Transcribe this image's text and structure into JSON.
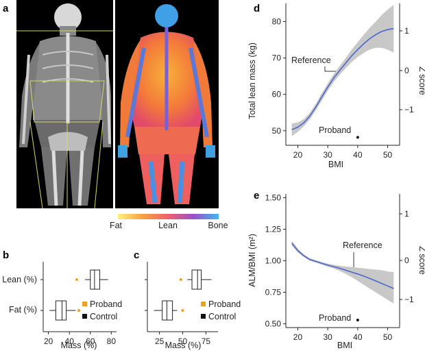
{
  "panels": {
    "a": {
      "label": "a",
      "colorbar": {
        "fat": "Fat",
        "lean": "Lean",
        "bone": "Bone"
      }
    },
    "b": {
      "label": "b",
      "ylabels": [
        "Lean (%)",
        "Fat (%)"
      ],
      "xlabel": "Mass (%)",
      "xticks": [
        "20",
        "40",
        "60",
        "80"
      ],
      "legend": {
        "proband": "Proband",
        "control": "Control"
      }
    },
    "c": {
      "label": "c",
      "xlabel": "Mass (%)",
      "xticks": [
        "25",
        "50",
        "75"
      ],
      "legend": {
        "proband": "Proband",
        "control": "Control"
      }
    },
    "d": {
      "label": "d",
      "ylabel": "Total lean mass (kg)",
      "y2label": "Z score",
      "xlabel": "BMI",
      "xticks": [
        "20",
        "30",
        "40",
        "50"
      ],
      "yticks": [
        "50",
        "60",
        "70",
        "80"
      ],
      "y2ticks": [
        "1",
        "0",
        "−1"
      ],
      "reference": "Reference",
      "proband": "Proband"
    },
    "e": {
      "label": "e",
      "ylabel": "ALM/BMI (m²)",
      "y2label": "Z score",
      "xlabel": "BMI",
      "xticks": [
        "20",
        "30",
        "40",
        "50"
      ],
      "yticks": [
        "0.50",
        "0.75",
        "1.00",
        "1.25",
        "1.50"
      ],
      "y2ticks": [
        "1",
        "0",
        "−1"
      ],
      "reference": "Reference",
      "proband": "Proband"
    }
  },
  "colors": {
    "proband": "#f0a020",
    "curve": "#4a66c8",
    "band": "#c8c8c8"
  },
  "chart_data": [
    {
      "type": "box",
      "panel": "b",
      "xlim": [
        15,
        85
      ],
      "proband": {
        "lean": 47,
        "fat": 49
      },
      "control": {
        "lean": {
          "whisker_low": 55,
          "q1": 60,
          "median": 64,
          "q3": 69,
          "whisker_high": 77
        },
        "fat": {
          "whisker_low": 21,
          "q1": 27,
          "median": 33,
          "q3": 37,
          "whisker_high": 46
        }
      }
    },
    {
      "type": "box",
      "panel": "c",
      "xlim": [
        12,
        88
      ],
      "proband": {
        "lean": 48,
        "fat": 50
      },
      "control": {
        "lean": {
          "whisker_low": 55,
          "q1": 60,
          "median": 66,
          "q3": 70,
          "whisker_high": 81
        },
        "fat": {
          "whisker_low": 19,
          "q1": 28,
          "median": 33,
          "q3": 39,
          "whisker_high": 44
        }
      }
    },
    {
      "type": "line",
      "panel": "d",
      "xlabel": "BMI",
      "ylabel": "Total lean mass (kg)",
      "xlim": [
        16,
        54
      ],
      "ylim": [
        46,
        85
      ],
      "x": [
        18,
        20,
        22,
        24,
        26,
        28,
        30,
        32,
        34,
        36,
        38,
        40,
        42,
        44,
        46,
        48,
        50,
        52
      ],
      "y": [
        50.3,
        51.0,
        52.2,
        54.0,
        56.5,
        59.3,
        62.0,
        64.5,
        66.6,
        68.6,
        70.6,
        72.3,
        73.9,
        75.3,
        76.4,
        77.3,
        77.8,
        78.1
      ],
      "lower": [
        48.5,
        49.7,
        51.2,
        53.1,
        55.6,
        58.3,
        61.0,
        63.4,
        65.4,
        67.2,
        68.9,
        70.3,
        71.4,
        72.3,
        72.8,
        72.8,
        72.3,
        71.5
      ],
      "upper": [
        52.0,
        52.3,
        53.2,
        54.9,
        57.4,
        60.3,
        63.0,
        65.6,
        67.8,
        70.0,
        72.3,
        74.3,
        76.4,
        78.3,
        80.0,
        81.8,
        83.3,
        84.6
      ],
      "proband": {
        "x": 40,
        "y": 48.2
      }
    },
    {
      "type": "line",
      "panel": "e",
      "xlabel": "BMI",
      "ylabel": "ALM/BMI (m²)",
      "xlim": [
        16,
        54
      ],
      "ylim": [
        0.47,
        1.53
      ],
      "x": [
        18,
        20,
        22,
        24,
        26,
        28,
        30,
        32,
        34,
        36,
        38,
        40,
        42,
        44,
        46,
        48,
        50,
        52
      ],
      "y": [
        1.14,
        1.08,
        1.04,
        1.01,
        0.995,
        0.98,
        0.965,
        0.953,
        0.94,
        0.925,
        0.91,
        0.895,
        0.878,
        0.86,
        0.84,
        0.82,
        0.8,
        0.78
      ],
      "lower": [
        1.12,
        1.065,
        1.03,
        1.0,
        0.985,
        0.97,
        0.953,
        0.938,
        0.92,
        0.896,
        0.87,
        0.84,
        0.81,
        0.78,
        0.75,
        0.72,
        0.69,
        0.66
      ],
      "upper": [
        1.16,
        1.095,
        1.05,
        1.02,
        1.005,
        0.99,
        0.977,
        0.968,
        0.96,
        0.955,
        0.95,
        0.945,
        0.94,
        0.935,
        0.93,
        0.925,
        0.915,
        0.91
      ],
      "proband": {
        "x": 40,
        "y": 0.53
      }
    }
  ]
}
